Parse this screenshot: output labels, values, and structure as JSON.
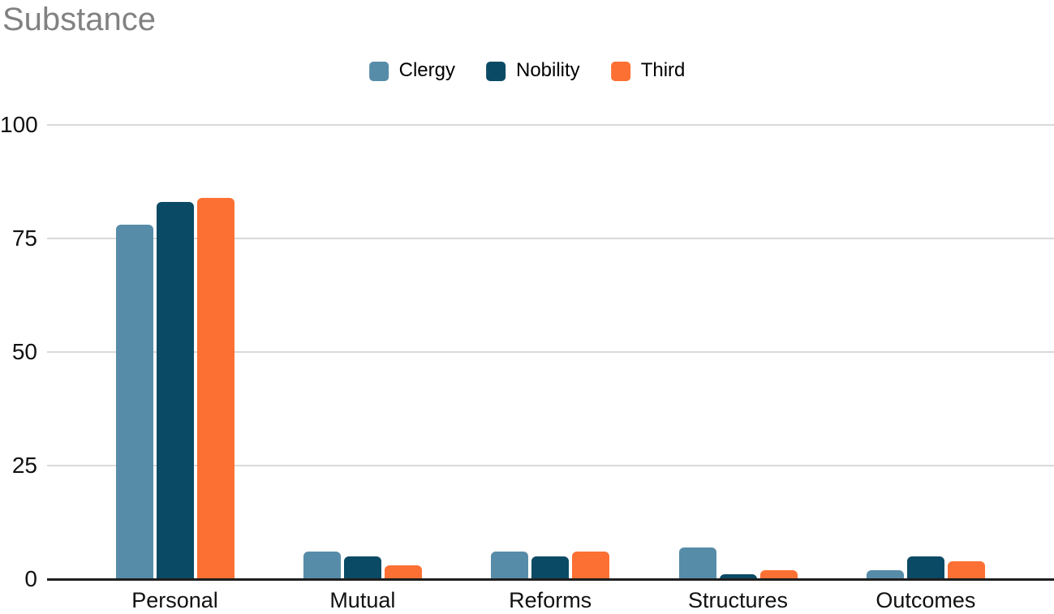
{
  "title": "Substance",
  "legend": {
    "position": "top",
    "items": [
      {
        "label": "Clergy",
        "color": "#578CA9"
      },
      {
        "label": "Nobility",
        "color": "#0B4A64"
      },
      {
        "label": "Third",
        "color": "#FC7033"
      }
    ]
  },
  "chart_data": {
    "type": "bar",
    "title": "Substance",
    "categories": [
      "Personal",
      "Mutual",
      "Reforms",
      "Structures",
      "Outcomes"
    ],
    "series": [
      {
        "name": "Clergy",
        "color": "#578CA9",
        "values": [
          78,
          6,
          6,
          7,
          2
        ]
      },
      {
        "name": "Nobility",
        "color": "#0B4A64",
        "values": [
          83,
          5,
          5,
          1,
          5
        ]
      },
      {
        "name": "Third",
        "color": "#FC7033",
        "values": [
          84,
          3,
          6,
          2,
          4
        ]
      }
    ],
    "xlabel": "",
    "ylabel": "",
    "ylim": [
      0,
      100
    ],
    "y_ticks": [
      0,
      25,
      50,
      75,
      100
    ],
    "grid": true,
    "legend_position": "top"
  },
  "colors": {
    "title_text": "#818181",
    "axis_text": "#111111",
    "gridline": "#D9D9D9",
    "axis_line": "#1F1F1F",
    "background": "#FFFFFF"
  }
}
